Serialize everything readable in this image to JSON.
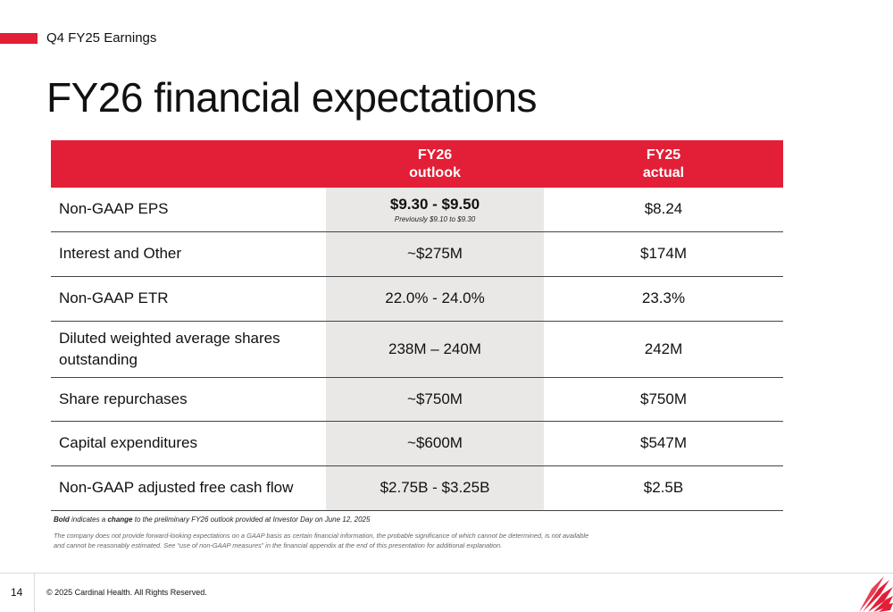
{
  "header": {
    "section": "Q4 FY25 Earnings",
    "title": "FY26 financial expectations"
  },
  "table": {
    "columns": {
      "label": "",
      "fy26": [
        "FY26",
        "outlook"
      ],
      "fy25": [
        "FY25",
        "actual"
      ]
    },
    "rows": [
      {
        "label": "Non-GAAP EPS",
        "fy26": "$9.30 - $9.50",
        "fy26_note": "Previously $9.10 to $9.30",
        "fy25": "$8.24"
      },
      {
        "label": "Interest and Other",
        "fy26": "~$275M",
        "fy25": "$174M"
      },
      {
        "label": "Non-GAAP ETR",
        "fy26": "22.0% - 24.0%",
        "fy25": "23.3%"
      },
      {
        "label": "Diluted weighted average shares outstanding",
        "fy26": "238M – 240M",
        "fy25": "242M"
      },
      {
        "label": "Share repurchases",
        "fy26": "~$750M",
        "fy25": "$750M"
      },
      {
        "label": "Capital expenditures",
        "fy26": "~$600M",
        "fy25": "$547M"
      },
      {
        "label": "Non-GAAP adjusted free cash flow",
        "fy26": "$2.75B - $3.25B",
        "fy25": "$2.5B"
      }
    ]
  },
  "footnotes": {
    "bold_word": "Bold",
    "text_a": " indicates a ",
    "change_word": "change",
    "text_b": " to the preliminary FY26 outlook provided at Investor Day on June 12, 2025",
    "disclaimer": "The company does not provide forward-looking expectations on a GAAP basis as certain financial information, the probable significance of which cannot be determined, is not available and cannot be reasonably estimated. See “use of non-GAAP measures” in the financial appendix at the end of this presentation for additional explanation."
  },
  "footer": {
    "page_number": "14",
    "copyright": "© 2025 Cardinal Health. All Rights Reserved."
  },
  "colors": {
    "accent": "#e21f36",
    "highlight_column": "#e9e8e6"
  },
  "icons": {
    "logo": "cardinal-health-logo"
  }
}
